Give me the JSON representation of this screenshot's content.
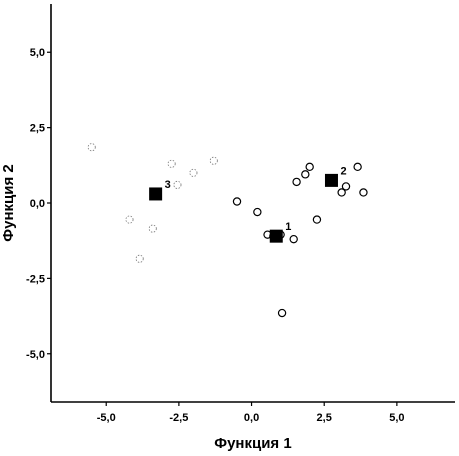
{
  "chart_data": {
    "type": "scatter",
    "xlabel": "Функция 1",
    "ylabel": "Функция 2",
    "xlim": [
      -6.9,
      7.0
    ],
    "ylim": [
      -6.6,
      6.6
    ],
    "x_ticks": [
      -5.0,
      -2.5,
      0.0,
      2.5,
      5.0
    ],
    "y_ticks": [
      5.0,
      2.5,
      0.0,
      -2.5,
      -5.0
    ],
    "x_tick_labels": [
      "-5,0",
      "-2,5",
      "0,0",
      "2,5",
      "5,0"
    ],
    "y_tick_labels": [
      "5,0",
      "2,5",
      "0,0",
      "-2,5",
      "-5,0"
    ],
    "series": [
      {
        "group": "1",
        "points": [
          {
            "x": -0.5,
            "y": 0.05
          },
          {
            "x": 0.2,
            "y": -0.3
          },
          {
            "x": 0.55,
            "y": -1.05
          },
          {
            "x": 0.75,
            "y": -1.1
          },
          {
            "x": 1.0,
            "y": -1.05
          },
          {
            "x": 1.45,
            "y": -1.2
          },
          {
            "x": 2.25,
            "y": -0.55
          },
          {
            "x": 1.05,
            "y": -3.65
          }
        ]
      },
      {
        "group": "2",
        "points": [
          {
            "x": 1.55,
            "y": 0.7
          },
          {
            "x": 1.85,
            "y": 0.95
          },
          {
            "x": 2.0,
            "y": 1.2
          },
          {
            "x": 3.1,
            "y": 0.35
          },
          {
            "x": 3.25,
            "y": 0.55
          },
          {
            "x": 3.65,
            "y": 1.2
          },
          {
            "x": 3.85,
            "y": 0.35
          }
        ]
      },
      {
        "group": "3",
        "points": [
          {
            "x": -5.5,
            "y": 1.85
          },
          {
            "x": -2.75,
            "y": 1.3
          },
          {
            "x": -2.55,
            "y": 0.6
          },
          {
            "x": -2.0,
            "y": 1.0
          },
          {
            "x": -1.3,
            "y": 1.4
          },
          {
            "x": -4.2,
            "y": -0.55
          },
          {
            "x": -3.4,
            "y": -0.85
          },
          {
            "x": -3.85,
            "y": -1.85
          }
        ]
      }
    ],
    "centroids": [
      {
        "label": "1",
        "x": 0.85,
        "y": -1.1
      },
      {
        "label": "2",
        "x": 2.75,
        "y": 0.75
      },
      {
        "label": "3",
        "x": -3.3,
        "y": 0.3
      }
    ]
  }
}
